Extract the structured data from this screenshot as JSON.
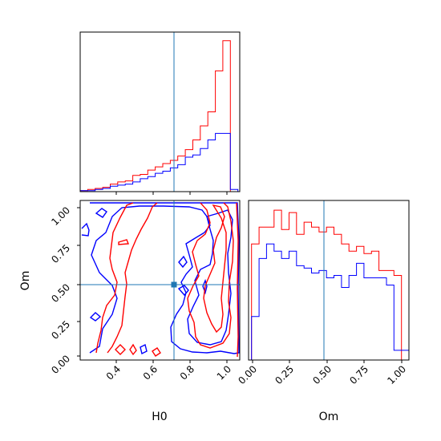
{
  "chart_data": [
    {
      "type": "histogram",
      "panel": "H0 marginal",
      "xlim": [
        0.21,
        1.06
      ],
      "truth": 0.71,
      "bin_edges": [
        0.21,
        0.25,
        0.29,
        0.33,
        0.37,
        0.41,
        0.45,
        0.49,
        0.53,
        0.57,
        0.61,
        0.65,
        0.69,
        0.73,
        0.77,
        0.81,
        0.85,
        0.89,
        0.93,
        0.97,
        1.01,
        1.05
      ],
      "series": [
        {
          "color": "#ff0000",
          "values": [
            1,
            2,
            3,
            4,
            7,
            9,
            10,
            15,
            16,
            20,
            23,
            26,
            29,
            33,
            39,
            48,
            61,
            74,
            112,
            140,
            0
          ]
        },
        {
          "color": "#0000ff",
          "values": [
            1,
            1,
            2,
            3,
            5,
            6,
            7,
            9,
            12,
            14,
            17,
            19,
            22,
            25,
            32,
            34,
            40,
            48,
            54,
            54,
            2
          ]
        }
      ]
    },
    {
      "type": "contour",
      "panel": "H0 vs Om joint",
      "xlabel": "H0",
      "ylabel": "Om",
      "xlim": [
        0.21,
        1.06
      ],
      "ylim": [
        -0.02,
        1.05
      ],
      "xticks": [
        "0.4",
        "0.6",
        "0.8",
        "1.0"
      ],
      "yticks": [
        "0.00",
        "0.25",
        "0.50",
        "0.75",
        "1.00"
      ],
      "truth": [
        0.71,
        0.48
      ]
    },
    {
      "type": "histogram",
      "panel": "Om marginal",
      "xlabel": "Om",
      "xlim": [
        -0.02,
        1.05
      ],
      "xticks": [
        "0.00",
        "0.25",
        "0.50",
        "0.75",
        "1.00"
      ],
      "truth": 0.48,
      "bin_edges": [
        0.0,
        0.05,
        0.1,
        0.15,
        0.2,
        0.25,
        0.3,
        0.35,
        0.4,
        0.45,
        0.5,
        0.55,
        0.6,
        0.65,
        0.7,
        0.75,
        0.8,
        0.85,
        0.9,
        0.95,
        1.0,
        1.05
      ],
      "series": [
        {
          "color": "#ff0000",
          "values": [
            0.48,
            0.55,
            0.55,
            0.62,
            0.54,
            0.61,
            0.52,
            0.57,
            0.55,
            0.53,
            0.55,
            0.52,
            0.48,
            0.45,
            0.47,
            0.44,
            0.45,
            0.37,
            0.37,
            0.35,
            0.0
          ]
        },
        {
          "color": "#0000ff",
          "values": [
            0.18,
            0.42,
            0.48,
            0.45,
            0.42,
            0.45,
            0.39,
            0.38,
            0.36,
            0.37,
            0.34,
            0.35,
            0.3,
            0.35,
            0.4,
            0.34,
            0.34,
            0.34,
            0.31,
            0.04,
            0.04
          ]
        }
      ]
    }
  ]
}
